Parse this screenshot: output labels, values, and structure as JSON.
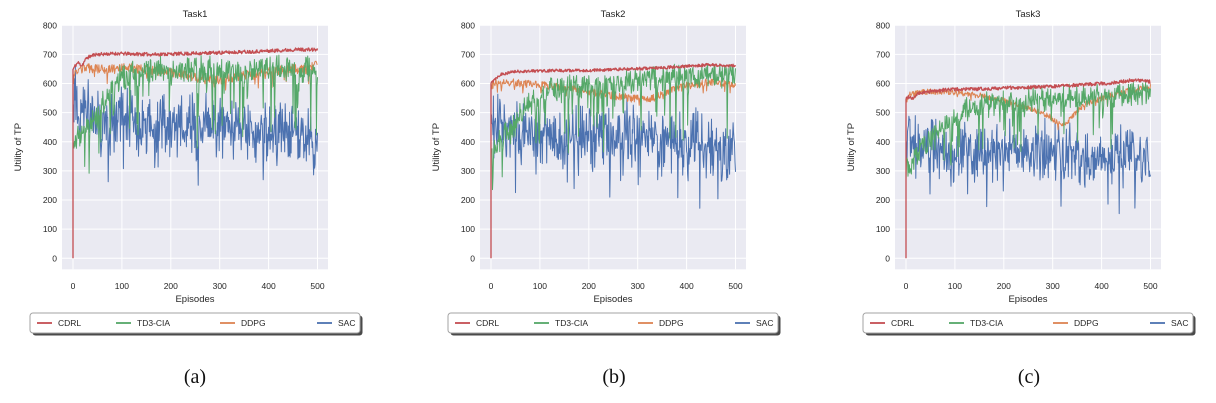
{
  "theme": {
    "plot_bg": "#eaeaf2",
    "grid_color": "#ffffff",
    "text_color": "#262626",
    "legend_bg": "#ffffff",
    "legend_border": "#a3a3a3",
    "legend_shadow": "#4a4a4a"
  },
  "chart_data": [
    {
      "type": "line",
      "title": "Task1",
      "xlabel": "Episodes",
      "ylabel": "Utility of TP",
      "caption": "(a)",
      "xlim": [
        0,
        500
      ],
      "ylim": [
        0,
        800
      ],
      "xticks": [
        0,
        100,
        200,
        300,
        400,
        500
      ],
      "yticks": [
        0,
        100,
        200,
        300,
        400,
        500,
        600,
        700,
        800
      ],
      "grid": true,
      "legend_position": "below",
      "legend": [
        "CDRL",
        "TD3-CIA",
        "DDPG",
        "SAC"
      ],
      "series": [
        {
          "name": "CDRL",
          "color": "#c44e52",
          "line_width": 1.3,
          "seed": 11,
          "start_zero": true,
          "noise": 6,
          "clamp_max": 742,
          "trend": [
            [
              0,
              648
            ],
            [
              4,
              660
            ],
            [
              10,
              672
            ],
            [
              18,
              662
            ],
            [
              28,
              688
            ],
            [
              45,
              700
            ],
            [
              90,
              703
            ],
            [
              160,
              700
            ],
            [
              240,
              703
            ],
            [
              320,
              707
            ],
            [
              400,
              712
            ],
            [
              460,
              717
            ],
            [
              500,
              716
            ]
          ]
        },
        {
          "name": "TD3-CIA",
          "color": "#55a868",
          "line_width": 1.0,
          "seed": 22,
          "noise_up": 42,
          "noise_down": 68,
          "spike_prob": 0.1,
          "spike_max": 240,
          "clamp_min": 255,
          "clamp_max": 706,
          "trend": [
            [
              0,
              400
            ],
            [
              15,
              440
            ],
            [
              40,
              480
            ],
            [
              70,
              570
            ],
            [
              100,
              640
            ],
            [
              140,
              652
            ],
            [
              220,
              656
            ],
            [
              320,
              660
            ],
            [
              420,
              668
            ],
            [
              500,
              670
            ]
          ]
        },
        {
          "name": "DDPG",
          "color": "#dd8452",
          "line_width": 1.0,
          "seed": 33,
          "noise": 16,
          "spike_prob": 0.05,
          "spike_max": 45,
          "clamp_max": 690,
          "trend": [
            [
              0,
              612
            ],
            [
              8,
              645
            ],
            [
              30,
              652
            ],
            [
              70,
              648
            ],
            [
              110,
              656
            ],
            [
              160,
              645
            ],
            [
              210,
              636
            ],
            [
              255,
              620
            ],
            [
              300,
              612
            ],
            [
              340,
              626
            ],
            [
              390,
              638
            ],
            [
              440,
              650
            ],
            [
              480,
              648
            ],
            [
              500,
              668
            ]
          ]
        },
        {
          "name": "SAC",
          "color": "#4c72b0",
          "line_width": 1.0,
          "seed": 44,
          "noise_up": 115,
          "noise_down": 130,
          "spike_prob": 0.1,
          "spike_max": 160,
          "spike_up_prob": 0.02,
          "spike_up_max": 70,
          "clamp_min": 120,
          "clamp_max": 665,
          "trend": [
            [
              0,
              580
            ],
            [
              12,
              535
            ],
            [
              35,
              505
            ],
            [
              60,
              490
            ],
            [
              100,
              478
            ],
            [
              160,
              482
            ],
            [
              220,
              468
            ],
            [
              280,
              476
            ],
            [
              340,
              462
            ],
            [
              400,
              438
            ],
            [
              450,
              452
            ],
            [
              500,
              430
            ]
          ]
        }
      ]
    },
    {
      "type": "line",
      "title": "Task2",
      "xlabel": "Episodes",
      "ylabel": "Utility of TP",
      "caption": "(b)",
      "xlim": [
        0,
        500
      ],
      "ylim": [
        0,
        800
      ],
      "xticks": [
        0,
        100,
        200,
        300,
        400,
        500
      ],
      "yticks": [
        0,
        100,
        200,
        300,
        400,
        500,
        600,
        700,
        800
      ],
      "grid": true,
      "legend_position": "below",
      "legend": [
        "CDRL",
        "TD3-CIA",
        "DDPG",
        "SAC"
      ],
      "series": [
        {
          "name": "CDRL",
          "color": "#c44e52",
          "line_width": 1.3,
          "seed": 55,
          "start_zero": true,
          "noise": 5,
          "clamp_max": 685,
          "trend": [
            [
              0,
              600
            ],
            [
              6,
              614
            ],
            [
              20,
              632
            ],
            [
              50,
              641
            ],
            [
              100,
              644
            ],
            [
              200,
              645
            ],
            [
              300,
              651
            ],
            [
              380,
              657
            ],
            [
              440,
              664
            ],
            [
              500,
              661
            ]
          ]
        },
        {
          "name": "TD3-CIA",
          "color": "#55a868",
          "line_width": 1.0,
          "seed": 66,
          "noise_up": 40,
          "noise_down": 62,
          "spike_prob": 0.1,
          "spike_max": 210,
          "clamp_min": 230,
          "clamp_max": 668,
          "trend": [
            [
              0,
              370
            ],
            [
              20,
              415
            ],
            [
              50,
              470
            ],
            [
              80,
              555
            ],
            [
              120,
              590
            ],
            [
              180,
              605
            ],
            [
              250,
              615
            ],
            [
              320,
              630
            ],
            [
              400,
              637
            ],
            [
              500,
              645
            ]
          ]
        },
        {
          "name": "DDPG",
          "color": "#dd8452",
          "line_width": 1.0,
          "seed": 77,
          "noise": 13,
          "spike_prob": 0.04,
          "spike_max": 35,
          "clamp_max": 650,
          "trend": [
            [
              0,
              588
            ],
            [
              10,
              606
            ],
            [
              40,
              604
            ],
            [
              90,
              597
            ],
            [
              140,
              588
            ],
            [
              190,
              576
            ],
            [
              240,
              561
            ],
            [
              290,
              548
            ],
            [
              330,
              549
            ],
            [
              360,
              571
            ],
            [
              400,
              592
            ],
            [
              450,
              606
            ],
            [
              480,
              599
            ],
            [
              500,
              592
            ]
          ]
        },
        {
          "name": "SAC",
          "color": "#4c72b0",
          "line_width": 1.0,
          "seed": 88,
          "noise_up": 112,
          "noise_down": 125,
          "spike_prob": 0.1,
          "spike_max": 155,
          "spike_up_prob": 0.02,
          "spike_up_max": 90,
          "clamp_min": 95,
          "clamp_max": 640,
          "trend": [
            [
              0,
              475
            ],
            [
              25,
              450
            ],
            [
              60,
              440
            ],
            [
              120,
              430
            ],
            [
              180,
              426
            ],
            [
              240,
              432
            ],
            [
              310,
              442
            ],
            [
              360,
              420
            ],
            [
              420,
              406
            ],
            [
              470,
              400
            ],
            [
              500,
              386
            ]
          ]
        }
      ]
    },
    {
      "type": "line",
      "title": "Task3",
      "xlabel": "Episodes",
      "ylabel": "Utility of TP",
      "caption": "(c)",
      "xlim": [
        0,
        500
      ],
      "ylim": [
        0,
        800
      ],
      "xticks": [
        0,
        100,
        200,
        300,
        400,
        500
      ],
      "yticks": [
        0,
        100,
        200,
        300,
        400,
        500,
        600,
        700,
        800
      ],
      "grid": true,
      "legend_position": "below",
      "legend": [
        "CDRL",
        "TD3-CIA",
        "DDPG",
        "SAC"
      ],
      "series": [
        {
          "name": "CDRL",
          "color": "#c44e52",
          "line_width": 1.3,
          "seed": 99,
          "start_zero": true,
          "noise": 6,
          "clamp_max": 635,
          "trend": [
            [
              0,
              548
            ],
            [
              6,
              556
            ],
            [
              14,
              549
            ],
            [
              26,
              566
            ],
            [
              50,
              573
            ],
            [
              90,
              580
            ],
            [
              150,
              581
            ],
            [
              220,
              586
            ],
            [
              300,
              590
            ],
            [
              360,
              596
            ],
            [
              420,
              602
            ],
            [
              465,
              612
            ],
            [
              500,
              606
            ]
          ]
        },
        {
          "name": "TD3-CIA",
          "color": "#55a868",
          "line_width": 1.0,
          "seed": 110,
          "noise_up": 45,
          "noise_down": 58,
          "spike_prob": 0.1,
          "spike_max": 175,
          "clamp_min": 200,
          "clamp_max": 612,
          "trend": [
            [
              0,
              310
            ],
            [
              20,
              355
            ],
            [
              50,
              415
            ],
            [
              90,
              475
            ],
            [
              130,
              520
            ],
            [
              180,
              540
            ],
            [
              250,
              552
            ],
            [
              320,
              560
            ],
            [
              400,
              566
            ],
            [
              500,
              578
            ]
          ]
        },
        {
          "name": "DDPG",
          "color": "#dd8452",
          "line_width": 1.0,
          "seed": 121,
          "noise": 10,
          "spike_prob": 0.03,
          "spike_max": 28,
          "clamp_max": 612,
          "trend": [
            [
              0,
              545
            ],
            [
              10,
              566
            ],
            [
              50,
              573
            ],
            [
              100,
              569
            ],
            [
              150,
              559
            ],
            [
              200,
              541
            ],
            [
              250,
              516
            ],
            [
              290,
              491
            ],
            [
              315,
              457
            ],
            [
              335,
              476
            ],
            [
              360,
              526
            ],
            [
              400,
              549
            ],
            [
              450,
              573
            ],
            [
              500,
              588
            ]
          ]
        },
        {
          "name": "SAC",
          "color": "#4c72b0",
          "line_width": 1.0,
          "seed": 132,
          "noise_up": 108,
          "noise_down": 122,
          "spike_prob": 0.1,
          "spike_max": 150,
          "spike_up_prob": 0.02,
          "spike_up_max": 110,
          "clamp_min": 70,
          "clamp_max": 620,
          "trend": [
            [
              0,
              425
            ],
            [
              30,
              400
            ],
            [
              70,
              386
            ],
            [
              130,
              376
            ],
            [
              200,
              371
            ],
            [
              270,
              376
            ],
            [
              330,
              366
            ],
            [
              400,
              356
            ],
            [
              460,
              362
            ],
            [
              500,
              346
            ]
          ]
        }
      ]
    }
  ]
}
